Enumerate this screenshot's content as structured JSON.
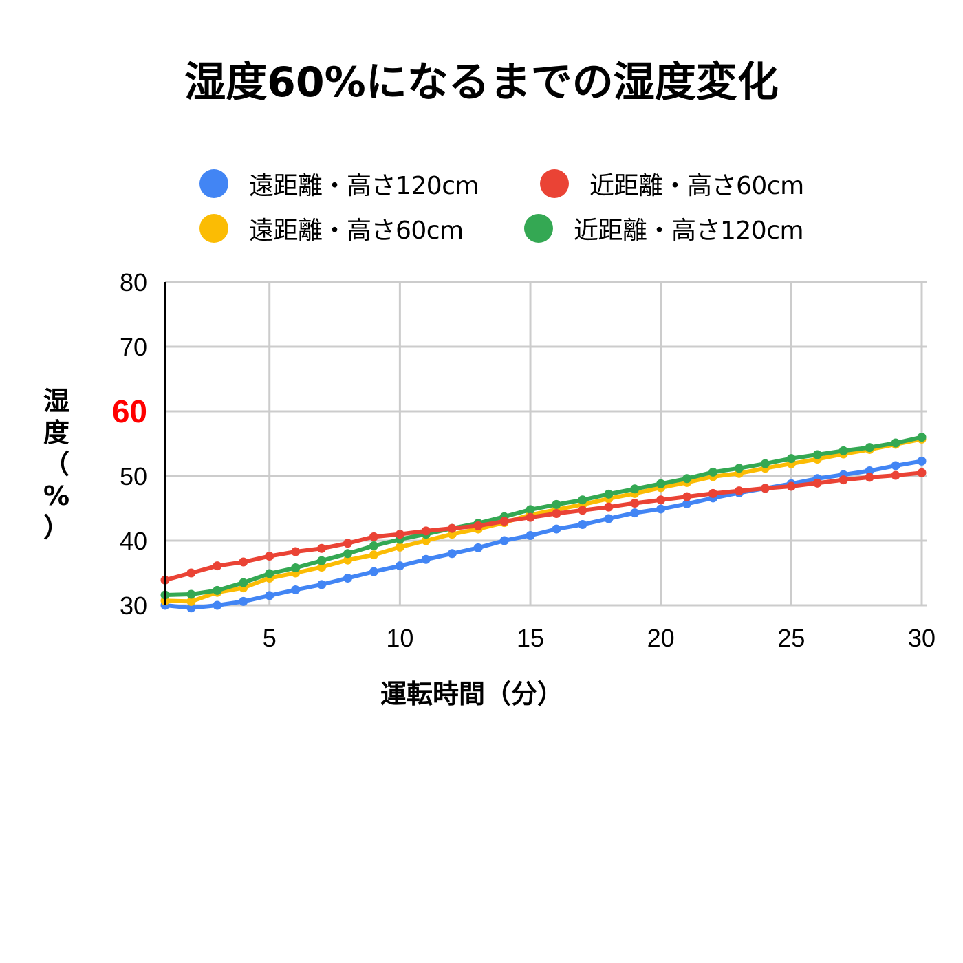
{
  "chart_data": {
    "type": "line",
    "title": "湿度60%になるまでの湿度変化",
    "xlabel": "運転時間（分）",
    "ylabel_lines": [
      "湿",
      "度",
      "（",
      "%",
      "）"
    ],
    "xlim": [
      1,
      30
    ],
    "ylim": [
      30,
      80
    ],
    "x_ticks": [
      5,
      10,
      15,
      20,
      25,
      30
    ],
    "y_ticks": [
      30,
      40,
      50,
      60,
      70,
      80
    ],
    "highlight_y_tick": 60,
    "highlight_color": "#ff0000",
    "grid": true,
    "legend_position": "top",
    "x": [
      1,
      2,
      3,
      4,
      5,
      6,
      7,
      8,
      9,
      10,
      11,
      12,
      13,
      14,
      15,
      16,
      17,
      18,
      19,
      20,
      21,
      22,
      23,
      24,
      25,
      26,
      27,
      28,
      29,
      30
    ],
    "series": [
      {
        "name": "遠距離・高さ120cm",
        "color": "#4285f4",
        "values": [
          30.0,
          29.6,
          30.0,
          30.6,
          31.5,
          32.4,
          33.2,
          34.2,
          35.2,
          36.1,
          37.1,
          38.0,
          38.9,
          40.0,
          40.8,
          41.8,
          42.5,
          43.4,
          44.3,
          44.9,
          45.7,
          46.6,
          47.4,
          48.1,
          48.8,
          49.6,
          50.2,
          50.8,
          51.6,
          52.3
        ]
      },
      {
        "name": "近距離・高さ60cm",
        "color": "#ea4335",
        "values": [
          33.9,
          35.0,
          36.1,
          36.7,
          37.6,
          38.3,
          38.8,
          39.6,
          40.6,
          41.0,
          41.5,
          41.9,
          42.3,
          43.0,
          43.6,
          44.2,
          44.7,
          45.2,
          45.8,
          46.3,
          46.8,
          47.3,
          47.7,
          48.1,
          48.4,
          48.9,
          49.4,
          49.8,
          50.1,
          50.5
        ]
      },
      {
        "name": "遠距離・高さ60cm",
        "color": "#fbbc04",
        "values": [
          30.7,
          30.6,
          32.0,
          32.7,
          34.2,
          35.0,
          35.9,
          37.0,
          37.8,
          39.0,
          40.0,
          41.0,
          41.8,
          42.8,
          44.0,
          44.8,
          45.6,
          46.5,
          47.3,
          48.2,
          49.0,
          49.9,
          50.4,
          51.2,
          51.9,
          52.6,
          53.4,
          54.1,
          54.9,
          55.7
        ]
      },
      {
        "name": "近距離・高さ120cm",
        "color": "#34a853",
        "values": [
          31.6,
          31.7,
          32.3,
          33.5,
          34.9,
          35.8,
          36.9,
          38.0,
          39.2,
          40.2,
          41.0,
          41.9,
          42.7,
          43.7,
          44.8,
          45.6,
          46.3,
          47.2,
          48.0,
          48.8,
          49.6,
          50.6,
          51.2,
          51.9,
          52.7,
          53.3,
          53.9,
          54.4,
          55.1,
          56.0
        ]
      }
    ]
  }
}
